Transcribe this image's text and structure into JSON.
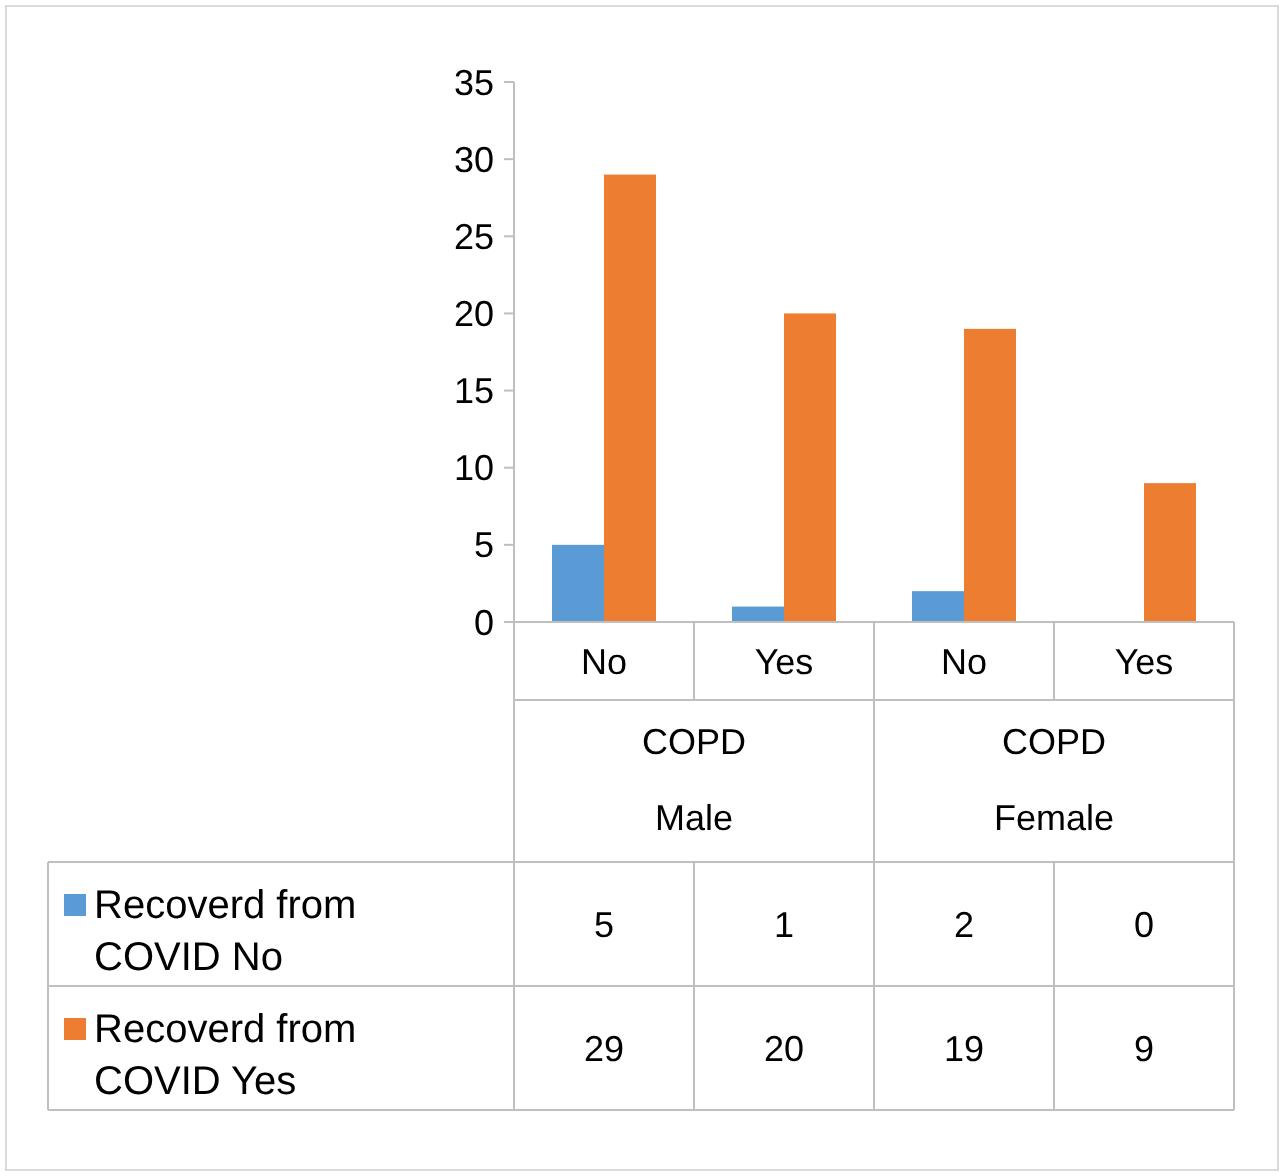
{
  "chart_data": {
    "type": "bar",
    "categories": [
      "No",
      "Yes",
      "No",
      "Yes"
    ],
    "series": [
      {
        "name": "Recoverd from COVID No",
        "color": "#5b9bd5",
        "values": [
          5,
          1,
          2,
          0
        ]
      },
      {
        "name": "Recoverd from COVID Yes",
        "color": "#ed7d31",
        "values": [
          29,
          20,
          19,
          9
        ]
      }
    ],
    "ylim": [
      0,
      35
    ],
    "yticks": [
      0,
      5,
      10,
      15,
      20,
      25,
      30,
      35
    ],
    "annotations": [
      "COPD Male",
      "COPD Female"
    ],
    "data_labels": true,
    "legend": "bottom"
  }
}
